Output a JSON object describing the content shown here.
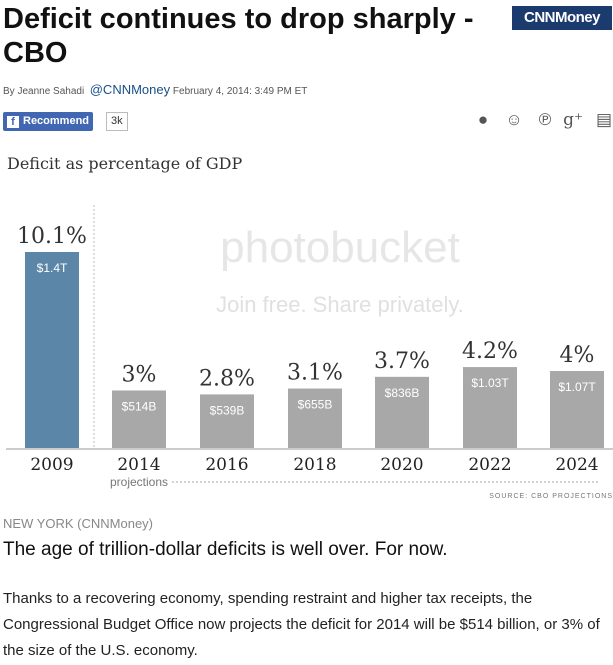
{
  "article": {
    "title": "Deficit continues to drop sharply - CBO",
    "logo": "CNNMoney",
    "byline_author": "By Jeanne Sahadi",
    "byline_handle": "@CNNMoney",
    "byline_date": "February 4, 2014: 3:49 PM ET",
    "recommend_label": "Recommend",
    "recommend_count": "3k",
    "social_icons": [
      "stumbleupon-icon",
      "reddit-icon",
      "pinterest-icon",
      "google-plus-icon",
      "print-icon"
    ],
    "dateline": "NEW YORK (CNNMoney)",
    "headline": "The age of trillion-dollar deficits is well over. For now.",
    "paragraph": "Thanks to a recovering economy, spending restraint and higher tax receipts, the Congressional Budget Office now projects the deficit for 2014 will be $514 billion, or 3% of the size of the U.S. economy."
  },
  "watermark": {
    "brand": "photobucket",
    "tagline": "Join free. Share privately."
  },
  "chart_data": {
    "type": "bar",
    "title": "Deficit as percentage of GDP",
    "categories": [
      "2009",
      "2014",
      "2016",
      "2018",
      "2020",
      "2022",
      "2024"
    ],
    "values": [
      10.1,
      3,
      2.8,
      3.1,
      3.7,
      4.2,
      4
    ],
    "value_labels": [
      "10.1%",
      "3%",
      "2.8%",
      "3.1%",
      "3.7%",
      "4.2%",
      "4%"
    ],
    "amount_labels": [
      "$1.4T",
      "$514B",
      "$539B",
      "$655B",
      "$836B",
      "$1.03T",
      "$1.07T"
    ],
    "annotation": "projections",
    "source": "SOURCE: CBO PROJECTIONS",
    "ylim": [
      0,
      10.1
    ],
    "colors": {
      "actual": "#5b86a8",
      "projection": "#a8a8a8"
    }
  }
}
